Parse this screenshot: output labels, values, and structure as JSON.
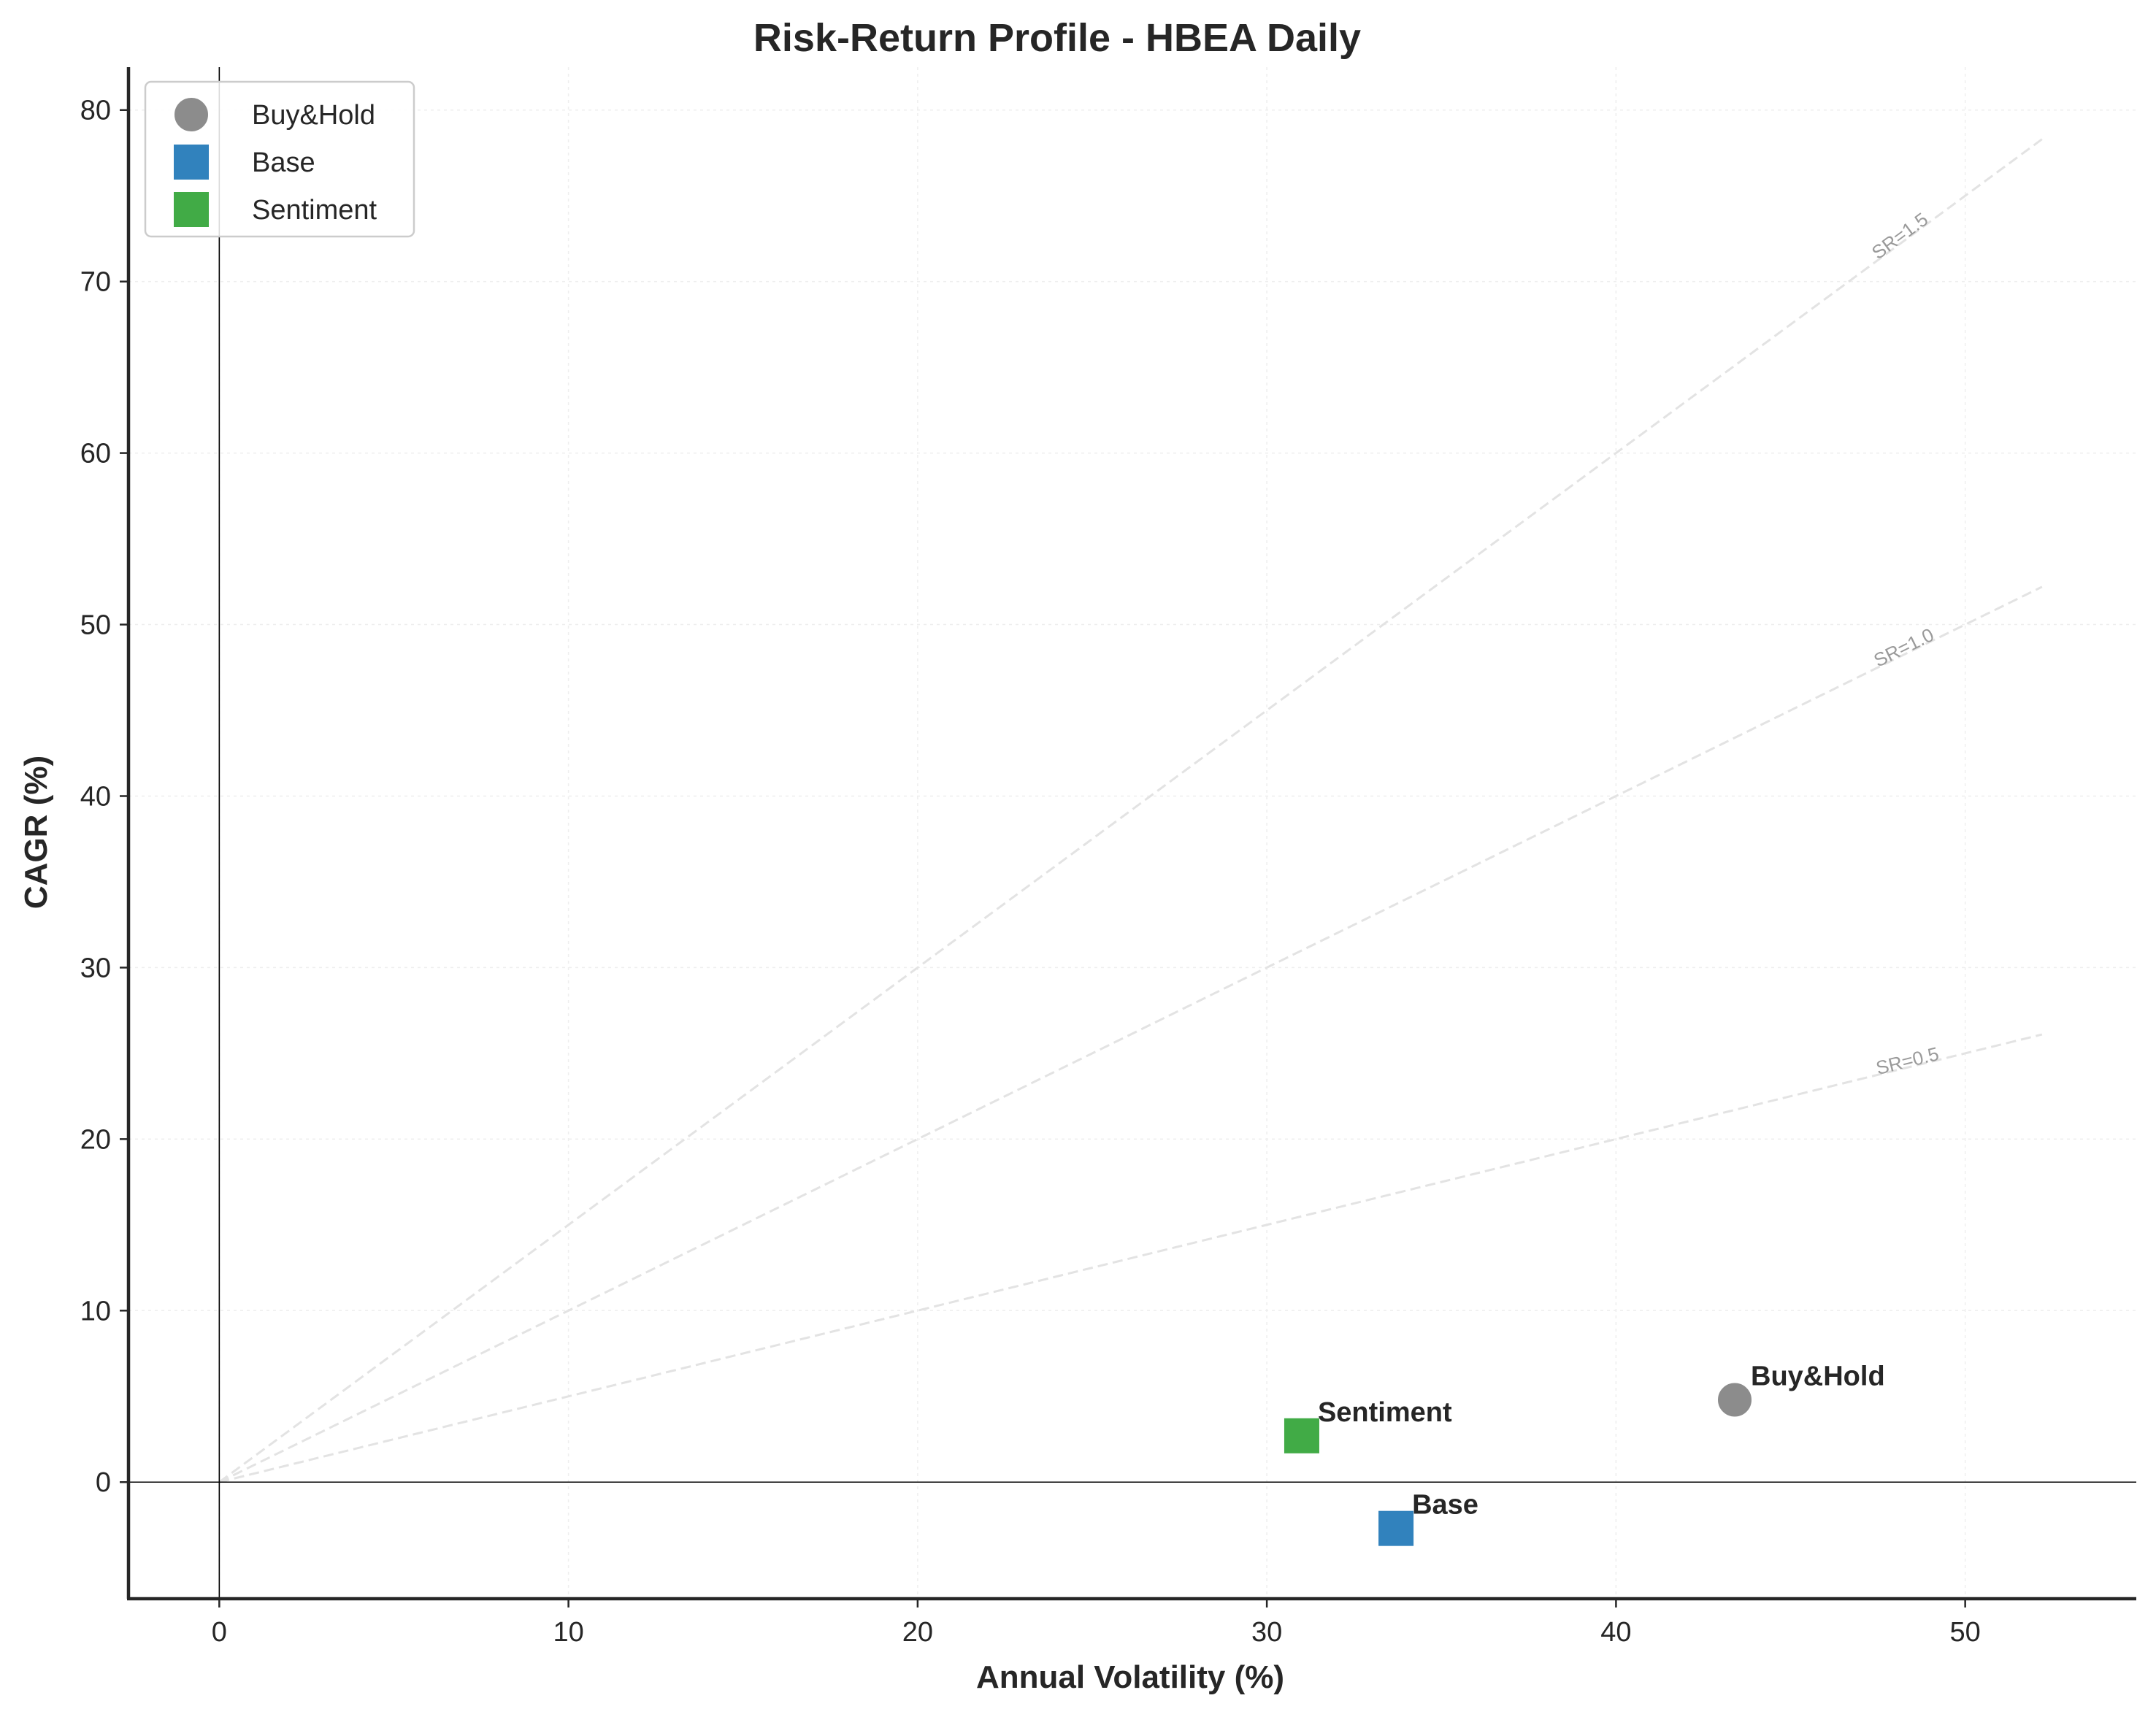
{
  "chart_data": {
    "type": "scatter",
    "title": "Risk-Return Profile - HBEA Daily",
    "xlabel": "Annual Volatility (%)",
    "ylabel": "CAGR (%)",
    "xlim": [
      -2.6,
      54.9
    ],
    "ylim": [
      -6.8,
      82.5
    ],
    "xticks": [
      0,
      10,
      20,
      30,
      40,
      50
    ],
    "yticks": [
      0,
      10,
      20,
      30,
      40,
      50,
      60,
      70,
      80
    ],
    "grid": true,
    "legend_position": "top-left",
    "series": [
      {
        "name": "Buy&Hold",
        "label": "Buy&Hold",
        "marker": "circle",
        "color": "#8c8c8c",
        "x": 43.4,
        "y": 4.8
      },
      {
        "name": "Base",
        "label": "Base",
        "marker": "square",
        "color": "#3182bd",
        "x": 33.7,
        "y": -2.7
      },
      {
        "name": "Sentiment",
        "label": "Sentiment",
        "marker": "square",
        "color": "#41ab46",
        "x": 31.0,
        "y": 2.7
      }
    ],
    "reference_lines": [
      {
        "label": "SR=0.5",
        "slope": 0.5,
        "x_end": 52.2
      },
      {
        "label": "SR=1.0",
        "slope": 1.0,
        "x_end": 52.2
      },
      {
        "label": "SR=1.5",
        "slope": 1.5,
        "x_end": 52.2
      }
    ],
    "reference_line_color": "#e3e3e3",
    "axis_color": "#262626"
  }
}
